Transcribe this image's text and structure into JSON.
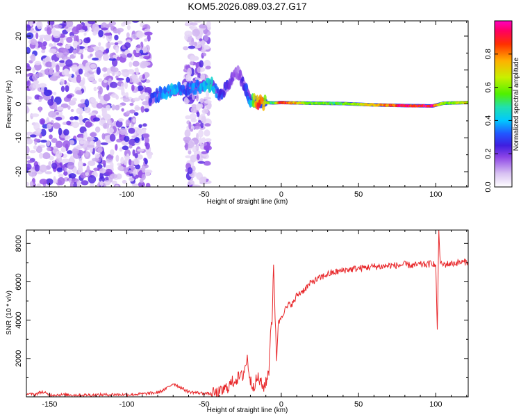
{
  "figure": {
    "title": "KOM5.2026.089.03.27.G17"
  },
  "chart_data": [
    {
      "type": "heatmap",
      "title": "KOM5.2026.089.03.27.G17",
      "xlabel": "Height of straight line (km)",
      "ylabel": "Frequency (Hz)",
      "xlim": [
        -165,
        121
      ],
      "ylim": [
        -24.5,
        24.5
      ],
      "xticks": [
        -150,
        -100,
        -50,
        0,
        50,
        100
      ],
      "yticks": [
        -20,
        -10,
        0,
        10,
        20
      ],
      "colorbar": {
        "label": "Normalized spectral amplitude",
        "range": [
          0,
          1
        ],
        "ticks": [
          0.0,
          0.2,
          0.4,
          0.6,
          0.8
        ]
      },
      "description_of_structure": {
        "noise_region_x": [
          -165,
          -85
        ],
        "noise_band_x": [
          -62,
          -47
        ],
        "signal_ridge": [
          {
            "x": -85,
            "freq": 1,
            "amp": 0.25
          },
          {
            "x": -78,
            "freq": 3,
            "amp": 0.35
          },
          {
            "x": -70,
            "freq": 4,
            "amp": 0.4
          },
          {
            "x": -62,
            "freq": 4,
            "amp": 0.3
          },
          {
            "x": -45,
            "freq": 6,
            "amp": 0.45
          },
          {
            "x": -40,
            "freq": 2,
            "amp": 0.3
          },
          {
            "x": -35,
            "freq": 5,
            "amp": 0.25
          },
          {
            "x": -28,
            "freq": 10,
            "amp": 0.15
          },
          {
            "x": -20,
            "freq": 1,
            "amp": 0.4
          },
          {
            "x": -15,
            "freq": 0.5,
            "amp": 0.85
          },
          {
            "x": -5,
            "freq": 0.3,
            "amp": 0.5
          },
          {
            "x": 0,
            "freq": 0.4,
            "amp": 0.9
          },
          {
            "x": 20,
            "freq": 0.2,
            "amp": 0.6
          },
          {
            "x": 40,
            "freq": 0.1,
            "amp": 0.55
          },
          {
            "x": 60,
            "freq": -0.3,
            "amp": 0.75
          },
          {
            "x": 80,
            "freq": -0.5,
            "amp": 0.95
          },
          {
            "x": 98,
            "freq": -0.6,
            "amp": 0.95
          },
          {
            "x": 105,
            "freq": 0.2,
            "amp": 0.6
          },
          {
            "x": 120,
            "freq": 0.4,
            "amp": 0.7
          }
        ]
      }
    },
    {
      "type": "line",
      "xlabel": "Height of straight line (km)",
      "ylabel": "SNR (10 * v/v)",
      "xlim": [
        -165,
        121
      ],
      "ylim": [
        0,
        8700
      ],
      "xticks": [
        -150,
        -100,
        -50,
        0,
        50,
        100
      ],
      "yticks": [
        2000,
        4000,
        6000,
        8000
      ],
      "series": [
        {
          "name": "SNR",
          "color": "#e8272a",
          "x": [
            -165,
            -160,
            -155,
            -150,
            -140,
            -130,
            -120,
            -110,
            -100,
            -90,
            -80,
            -75,
            -70,
            -65,
            -60,
            -55,
            -50,
            -45,
            -40,
            -35,
            -30,
            -25,
            -22,
            -20,
            -18,
            -15,
            -12,
            -10,
            -8,
            -7,
            -6,
            -5,
            -4,
            -3,
            -2,
            -1,
            0,
            2,
            5,
            8,
            10,
            15,
            20,
            25,
            30,
            35,
            40,
            45,
            50,
            55,
            60,
            65,
            70,
            75,
            80,
            85,
            90,
            95,
            98,
            100,
            101,
            102,
            103,
            105,
            110,
            115,
            121
          ],
          "y": [
            150,
            120,
            260,
            100,
            110,
            90,
            100,
            120,
            110,
            150,
            220,
            400,
            700,
            480,
            260,
            220,
            180,
            150,
            200,
            500,
            900,
            1100,
            2000,
            800,
            600,
            1000,
            500,
            700,
            1400,
            3500,
            4000,
            6800,
            4200,
            2000,
            3800,
            4000,
            4200,
            4500,
            4800,
            4900,
            5300,
            5600,
            6000,
            6200,
            6400,
            6500,
            6600,
            6650,
            6700,
            6750,
            6800,
            6800,
            6850,
            6850,
            6900,
            6850,
            6900,
            6900,
            7000,
            6800,
            3500,
            8700,
            6900,
            6900,
            6950,
            7000,
            7050
          ]
        }
      ]
    }
  ]
}
